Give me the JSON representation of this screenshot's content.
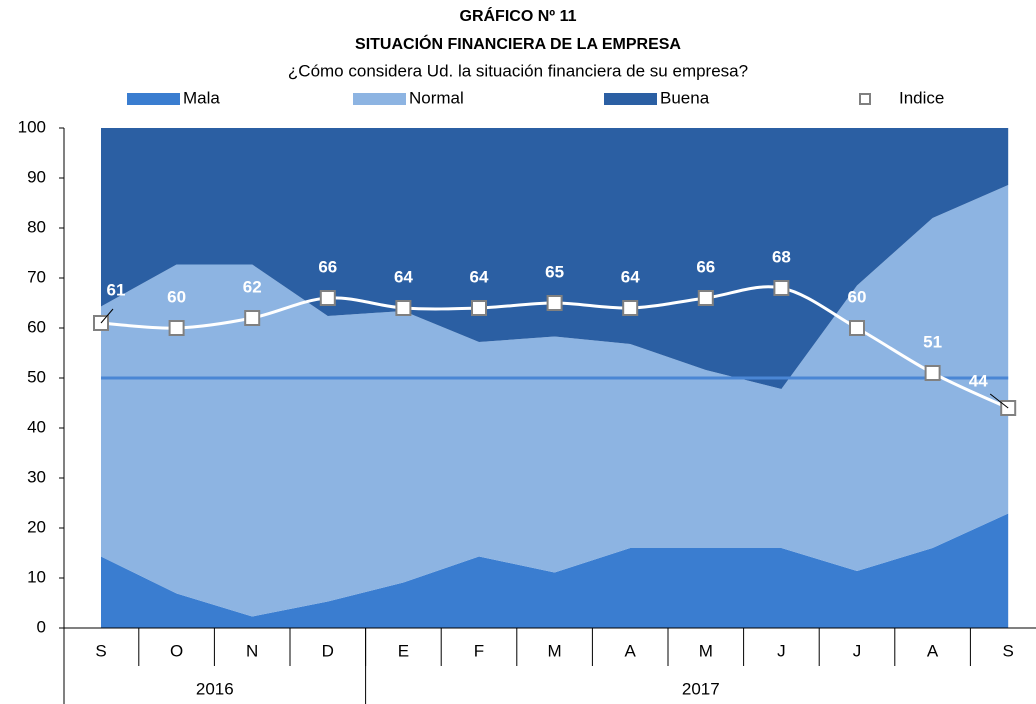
{
  "chart_data": {
    "type": "stacked_area",
    "title": "GRÁFICO Nº 11",
    "subtitle": "SITUACIÓN FINANCIERA DE LA EMPRESA",
    "question": "¿Cómo considera Ud. la situación financiera de su empresa?",
    "categories": [
      "S",
      "O",
      "N",
      "D",
      "E",
      "F",
      "M",
      "A",
      "M",
      "J",
      "J",
      "A",
      "S"
    ],
    "groups": [
      {
        "label": "2016",
        "count": 4
      },
      {
        "label": "2017",
        "count": 9
      }
    ],
    "series": [
      {
        "name": "Mala",
        "color": "#3a7dd0",
        "values": [
          14.3,
          6.9,
          2.3,
          5.3,
          9.1,
          14.3,
          11.1,
          16.0,
          16.0,
          16.0,
          11.4,
          16.0,
          22.9
        ]
      },
      {
        "name": "Normal",
        "color": "#8db4e2",
        "values": [
          50.0,
          65.8,
          70.4,
          57.1,
          54.3,
          42.9,
          47.2,
          40.8,
          35.6,
          31.8,
          57.1,
          66.0,
          65.7
        ]
      },
      {
        "name": "Buena",
        "color": "#2b5fa3",
        "values": [
          35.7,
          27.3,
          27.3,
          37.6,
          36.6,
          42.8,
          41.7,
          43.2,
          48.4,
          52.2,
          31.5,
          18.0,
          11.4
        ]
      }
    ],
    "index": {
      "name": "Indice",
      "color": "#ffffff",
      "values": [
        61,
        60,
        62,
        66,
        64,
        64,
        65,
        64,
        66,
        68,
        60,
        51,
        44
      ]
    },
    "reference_line": {
      "value": 50,
      "color": "#4a86d4"
    },
    "ylim": [
      0,
      100
    ],
    "yticks": [
      0,
      10,
      20,
      30,
      40,
      50,
      60,
      70,
      80,
      90,
      100
    ]
  }
}
